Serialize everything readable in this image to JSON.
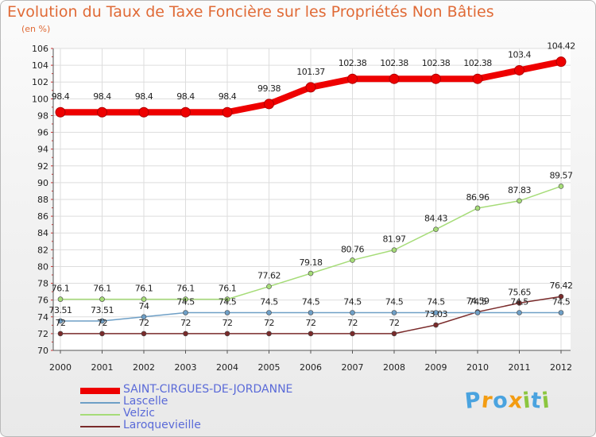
{
  "chart_data": {
    "type": "line",
    "title": "Evolution du Taux de Taxe Foncière sur les Propriétés Non Bâties",
    "subtitle": "(en %)",
    "x": [
      "2000",
      "2001",
      "2002",
      "2003",
      "2004",
      "2005",
      "2006",
      "2007",
      "2008",
      "2009",
      "2010",
      "2011",
      "2012"
    ],
    "ylim": [
      70,
      106
    ],
    "yticks": [
      "70",
      "72",
      "74",
      "76",
      "78",
      "80",
      "82",
      "84",
      "86",
      "88",
      "90",
      "92",
      "94",
      "96",
      "98",
      "100",
      "102",
      "104",
      "106"
    ],
    "grid": true,
    "legend_position": "bottom-left",
    "series": [
      {
        "name": "SAINT-CIRGUES-DE-JORDANNE",
        "color": "#ee0000",
        "values": [
          98.4,
          98.4,
          98.4,
          98.4,
          98.4,
          99.38,
          101.37,
          102.38,
          102.38,
          102.38,
          102.38,
          103.4,
          104.42
        ],
        "labels": [
          "98.4",
          "98.4",
          "98.4",
          "98.4",
          "98.4",
          "99.38",
          "101.37",
          "102.38",
          "102.38",
          "102.38",
          "102.38",
          "103.4",
          "104.42"
        ]
      },
      {
        "name": "Lascelle",
        "color": "#6e9fc6",
        "values": [
          73.51,
          73.51,
          74,
          74.5,
          74.5,
          74.5,
          74.5,
          74.5,
          74.5,
          74.5,
          74.5,
          74.5,
          74.5
        ],
        "labels": [
          "73.51",
          "73.51",
          "74",
          "74.5",
          "74.5",
          "74.5",
          "74.5",
          "74.5",
          "74.5",
          "74.5",
          "74.5",
          "74.5",
          "74.5"
        ]
      },
      {
        "name": "Velzic",
        "color": "#a6dc78",
        "values": [
          76.1,
          76.1,
          76.1,
          76.1,
          76.1,
          77.62,
          79.18,
          80.76,
          81.97,
          84.43,
          86.96,
          87.83,
          89.57
        ],
        "labels": [
          "76.1",
          "76.1",
          "76.1",
          "76.1",
          "76.1",
          "77.62",
          "79.18",
          "80.76",
          "81.97",
          "84.43",
          "86.96",
          "87.83",
          "89.57"
        ]
      },
      {
        "name": "Laroquevieille",
        "color": "#7a2b2b",
        "values": [
          72,
          72,
          72,
          72,
          72,
          72,
          72,
          72,
          72,
          73.03,
          74.59,
          75.65,
          76.42
        ],
        "labels": [
          "72",
          "72",
          "72",
          "72",
          "72",
          "72",
          "72",
          "72",
          "72",
          "73.03",
          "74.59",
          "75.65",
          "76.42"
        ]
      }
    ]
  },
  "logo": {
    "letters": [
      "P",
      "r",
      "o",
      "x",
      "i",
      "t",
      "i"
    ],
    "colors": [
      "#4aa3df",
      "#f39c12",
      "#4aa3df",
      "#f39c12",
      "#8cc63f",
      "#4aa3df",
      "#8cc63f"
    ]
  }
}
